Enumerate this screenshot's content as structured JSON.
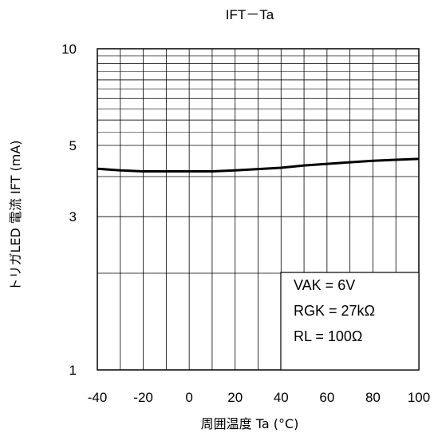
{
  "chart_data": {
    "type": "line",
    "title": "IFT－Ta",
    "xlabel": "周囲温度  Ta (°C)",
    "ylabel": "トリガLED 電流  IFT (mA)",
    "xlim": [
      -40,
      100
    ],
    "ylim": [
      1,
      10
    ],
    "y_scale": "log",
    "grid": true,
    "x_ticks": [
      -40,
      -20,
      0,
      20,
      40,
      60,
      80,
      100
    ],
    "x_tick_labels": [
      "-40",
      "-20",
      "0",
      "20",
      "40",
      "60",
      "80",
      "100"
    ],
    "y_tick_labels": [
      {
        "value": 1,
        "label": "1"
      },
      {
        "value": 3,
        "label": "3"
      },
      {
        "value": 5,
        "label": "5"
      },
      {
        "value": 10,
        "label": "10"
      }
    ],
    "series": [
      {
        "x": [
          -40,
          -30,
          -20,
          -10,
          0,
          10,
          20,
          30,
          40,
          50,
          60,
          70,
          80,
          90,
          100
        ],
        "values": [
          4.23,
          4.18,
          4.15,
          4.15,
          4.15,
          4.15,
          4.18,
          4.22,
          4.26,
          4.33,
          4.38,
          4.43,
          4.48,
          4.51,
          4.54
        ]
      }
    ],
    "annotations": [
      "VAK = 6V",
      "RGK = 27kΩ",
      "RL = 100Ω"
    ],
    "colors": {
      "line": "#000000",
      "grid": "#000000",
      "background": "#ffffff"
    }
  }
}
